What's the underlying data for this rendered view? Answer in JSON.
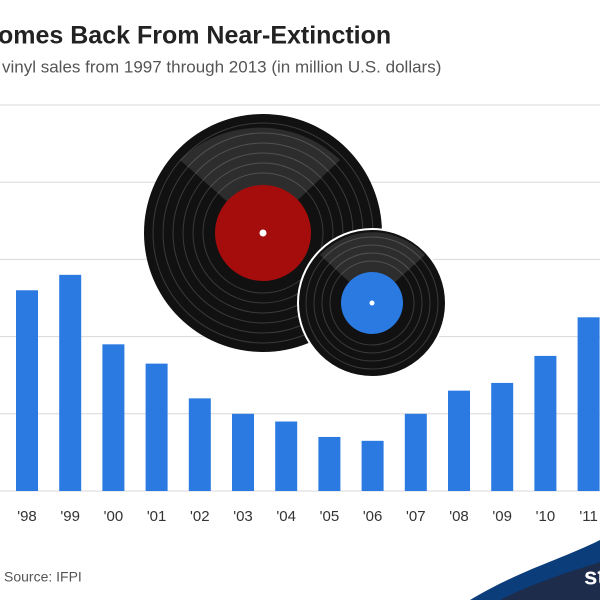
{
  "chart_data": {
    "type": "bar",
    "title": "omes Back From Near-Extinction",
    "subtitle": "vinyl sales from 1997 through 2013 (in million U.S. dollars)",
    "categories": [
      "'98",
      "'99",
      "'00",
      "'01",
      "'02",
      "'03",
      "'04",
      "'05",
      "'06",
      "'07",
      "'08",
      "'09",
      "'10",
      "'11"
    ],
    "values": [
      52,
      56,
      38,
      33,
      24,
      20,
      18,
      14,
      13,
      20,
      26,
      28,
      35,
      45
    ],
    "color": "#2a7ae2",
    "ylim": [
      0,
      100
    ],
    "yticks": [
      0,
      20,
      40,
      60,
      80,
      100
    ],
    "grid": true,
    "source": "Source: IFPI",
    "logo": "st"
  }
}
